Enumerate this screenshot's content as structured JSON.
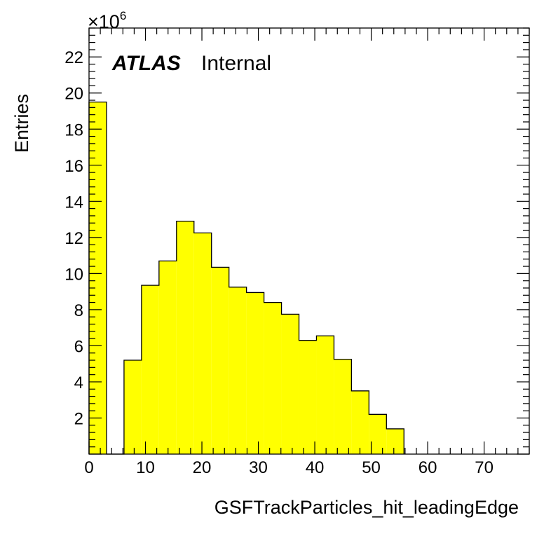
{
  "chart_data": {
    "type": "bar",
    "xlabel": "GSFTrackParticles_hit_leadingEdge",
    "ylabel": "Entries",
    "exponent_label": "×10",
    "exponent_power": "6",
    "label_bold": "ATLAS",
    "label_text": "Internal",
    "xlim": [
      0,
      78
    ],
    "ylim": [
      0,
      23.6
    ],
    "x_ticks": [
      0,
      10,
      20,
      30,
      40,
      50,
      60,
      70
    ],
    "y_ticks": [
      2,
      4,
      6,
      8,
      10,
      12,
      14,
      16,
      18,
      20,
      22
    ],
    "bin_edges": [
      0,
      3.1,
      6.2,
      9.3,
      12.4,
      15.5,
      18.6,
      21.7,
      24.8,
      27.9,
      31.0,
      34.1,
      37.2,
      40.3,
      43.4,
      46.5,
      49.6,
      52.7,
      55.8
    ],
    "values": [
      19.5,
      0,
      5.2,
      9.35,
      10.7,
      12.9,
      12.25,
      10.35,
      9.25,
      8.95,
      8.4,
      7.75,
      6.3,
      6.55,
      5.25,
      3.5,
      2.2,
      1.4
    ],
    "fill_color": "#ffff00",
    "line_color": "#000000"
  }
}
